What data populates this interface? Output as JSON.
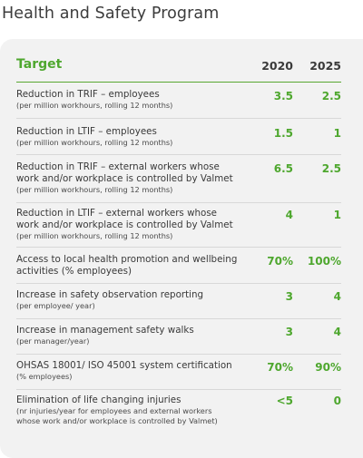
{
  "title": "Health and Safety Program",
  "table": {
    "header": {
      "target": "Target",
      "year1": "2020",
      "year2": "2025"
    },
    "rows": [
      {
        "label": "Reduction in TRIF – employees",
        "sub": "(per million workhours, rolling 12 months)",
        "v2020": "3.5",
        "v2025": "2.5"
      },
      {
        "label": "Reduction in LTIF – employees",
        "sub": "(per million workhours, rolling 12 months)",
        "v2020": "1.5",
        "v2025": "1"
      },
      {
        "label": "Reduction in TRIF – external workers whose",
        "label2": "work and/or workplace is controlled by Valmet",
        "sub": "(per million workhours, rolling 12 months)",
        "v2020": "6.5",
        "v2025": "2.5"
      },
      {
        "label": "Reduction in LTIF – external workers whose",
        "label2": "work and/or workplace is controlled by Valmet",
        "sub": "(per million workhours, rolling 12 months)",
        "v2020": "4",
        "v2025": "1"
      },
      {
        "label": "Access to local health promotion and wellbeing",
        "label2": "activities (% employees)",
        "v2020": "70%",
        "v2025": "100%"
      },
      {
        "label": "Increase in safety observation reporting",
        "sub": "(per employee/ year)",
        "v2020": "3",
        "v2025": "4"
      },
      {
        "label": "Increase in management safety walks",
        "sub": "(per manager/year)",
        "v2020": "3",
        "v2025": "4"
      },
      {
        "label": "OHSAS 18001/ ISO 45001 system certification",
        "sub": "(% employees)",
        "v2020": "70%",
        "v2025": "90%"
      },
      {
        "label": "Elimination of life changing injuries",
        "sub": "(nr injuries/year for employees and external workers",
        "sub2": "whose work and/or workplace is controlled by Valmet)",
        "v2020": "<5",
        "v2025": "0"
      }
    ]
  }
}
